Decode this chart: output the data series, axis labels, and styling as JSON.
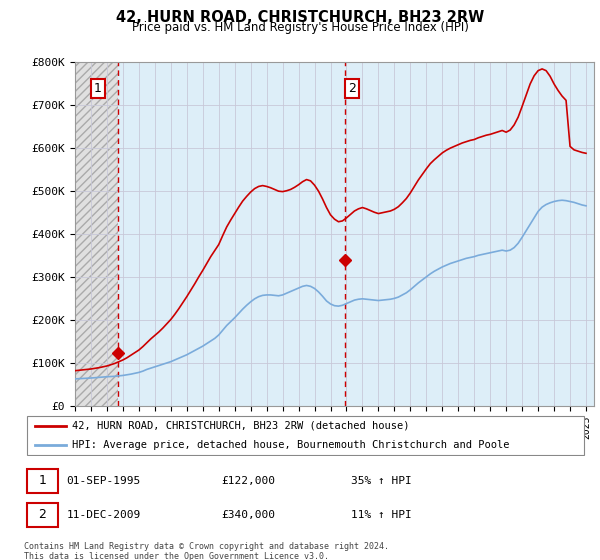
{
  "title": "42, HURN ROAD, CHRISTCHURCH, BH23 2RW",
  "subtitle": "Price paid vs. HM Land Registry's House Price Index (HPI)",
  "legend_line1": "42, HURN ROAD, CHRISTCHURCH, BH23 2RW (detached house)",
  "legend_line2": "HPI: Average price, detached house, Bournemouth Christchurch and Poole",
  "annotation1_label": "1",
  "annotation1_date": "01-SEP-1995",
  "annotation1_price": "£122,000",
  "annotation1_hpi": "35% ↑ HPI",
  "annotation2_label": "2",
  "annotation2_date": "11-DEC-2009",
  "annotation2_price": "£340,000",
  "annotation2_hpi": "11% ↑ HPI",
  "footer": "Contains HM Land Registry data © Crown copyright and database right 2024.\nThis data is licensed under the Open Government Licence v3.0.",
  "price_color": "#cc0000",
  "hpi_color": "#7aabdb",
  "dashed_line_color": "#cc0000",
  "hatch_area_color": "#e8e8e8",
  "blue_bg_color": "#ddeeff",
  "grid_color": "#bbbbcc",
  "ylim": [
    0,
    800000
  ],
  "xlim_left": 1993.0,
  "xlim_right": 2025.5,
  "sale1_x": 1995.67,
  "sale1_y": 122000,
  "sale2_x": 2009.92,
  "sale2_y": 340000,
  "hpi_x": [
    1993.0,
    1993.25,
    1993.5,
    1993.75,
    1994.0,
    1994.25,
    1994.5,
    1994.75,
    1995.0,
    1995.25,
    1995.5,
    1995.75,
    1996.0,
    1996.25,
    1996.5,
    1996.75,
    1997.0,
    1997.25,
    1997.5,
    1997.75,
    1998.0,
    1998.25,
    1998.5,
    1998.75,
    1999.0,
    1999.25,
    1999.5,
    1999.75,
    2000.0,
    2000.25,
    2000.5,
    2000.75,
    2001.0,
    2001.25,
    2001.5,
    2001.75,
    2002.0,
    2002.25,
    2002.5,
    2002.75,
    2003.0,
    2003.25,
    2003.5,
    2003.75,
    2004.0,
    2004.25,
    2004.5,
    2004.75,
    2005.0,
    2005.25,
    2005.5,
    2005.75,
    2006.0,
    2006.25,
    2006.5,
    2006.75,
    2007.0,
    2007.25,
    2007.5,
    2007.75,
    2008.0,
    2008.25,
    2008.5,
    2008.75,
    2009.0,
    2009.25,
    2009.5,
    2009.75,
    2010.0,
    2010.25,
    2010.5,
    2010.75,
    2011.0,
    2011.25,
    2011.5,
    2011.75,
    2012.0,
    2012.25,
    2012.5,
    2012.75,
    2013.0,
    2013.25,
    2013.5,
    2013.75,
    2014.0,
    2014.25,
    2014.5,
    2014.75,
    2015.0,
    2015.25,
    2015.5,
    2015.75,
    2016.0,
    2016.25,
    2016.5,
    2016.75,
    2017.0,
    2017.25,
    2017.5,
    2017.75,
    2018.0,
    2018.25,
    2018.5,
    2018.75,
    2019.0,
    2019.25,
    2019.5,
    2019.75,
    2020.0,
    2020.25,
    2020.5,
    2020.75,
    2021.0,
    2021.25,
    2021.5,
    2021.75,
    2022.0,
    2022.25,
    2022.5,
    2022.75,
    2023.0,
    2023.25,
    2023.5,
    2023.75,
    2024.0,
    2024.25,
    2024.5,
    2024.75,
    2025.0
  ],
  "hpi_y": [
    63000,
    63500,
    64000,
    64500,
    65000,
    65800,
    66600,
    67400,
    68000,
    68500,
    69000,
    70000,
    71000,
    72500,
    74000,
    76000,
    78000,
    81000,
    85000,
    88000,
    91000,
    94000,
    97000,
    100000,
    103000,
    107000,
    111000,
    115000,
    119000,
    124000,
    129000,
    134000,
    139000,
    145000,
    151000,
    157000,
    165000,
    176000,
    187000,
    196000,
    205000,
    215000,
    225000,
    234000,
    242000,
    249000,
    254000,
    257000,
    258000,
    258000,
    257000,
    256000,
    258000,
    262000,
    266000,
    270000,
    274000,
    278000,
    280000,
    278000,
    273000,
    265000,
    255000,
    244000,
    237000,
    233000,
    232000,
    234000,
    238000,
    242000,
    246000,
    248000,
    249000,
    248000,
    247000,
    246000,
    245000,
    246000,
    247000,
    248000,
    250000,
    253000,
    258000,
    263000,
    270000,
    278000,
    286000,
    293000,
    300000,
    307000,
    313000,
    318000,
    323000,
    327000,
    331000,
    334000,
    337000,
    340000,
    343000,
    345000,
    347000,
    350000,
    352000,
    354000,
    356000,
    358000,
    360000,
    362000,
    360000,
    362000,
    368000,
    378000,
    392000,
    407000,
    422000,
    437000,
    452000,
    462000,
    468000,
    472000,
    475000,
    477000,
    478000,
    477000,
    475000,
    473000,
    470000,
    467000,
    465000
  ],
  "price_x": [
    1993.0,
    1993.25,
    1993.5,
    1993.75,
    1994.0,
    1994.25,
    1994.5,
    1994.75,
    1995.0,
    1995.25,
    1995.5,
    1995.75,
    1996.0,
    1996.25,
    1996.5,
    1996.75,
    1997.0,
    1997.25,
    1997.5,
    1997.75,
    1998.0,
    1998.25,
    1998.5,
    1998.75,
    1999.0,
    1999.25,
    1999.5,
    1999.75,
    2000.0,
    2000.25,
    2000.5,
    2000.75,
    2001.0,
    2001.25,
    2001.5,
    2001.75,
    2002.0,
    2002.25,
    2002.5,
    2002.75,
    2003.0,
    2003.25,
    2003.5,
    2003.75,
    2004.0,
    2004.25,
    2004.5,
    2004.75,
    2005.0,
    2005.25,
    2005.5,
    2005.75,
    2006.0,
    2006.25,
    2006.5,
    2006.75,
    2007.0,
    2007.25,
    2007.5,
    2007.75,
    2008.0,
    2008.25,
    2008.5,
    2008.75,
    2009.0,
    2009.25,
    2009.5,
    2009.75,
    2010.0,
    2010.25,
    2010.5,
    2010.75,
    2011.0,
    2011.25,
    2011.5,
    2011.75,
    2012.0,
    2012.25,
    2012.5,
    2012.75,
    2013.0,
    2013.25,
    2013.5,
    2013.75,
    2014.0,
    2014.25,
    2014.5,
    2014.75,
    2015.0,
    2015.25,
    2015.5,
    2015.75,
    2016.0,
    2016.25,
    2016.5,
    2016.75,
    2017.0,
    2017.25,
    2017.5,
    2017.75,
    2018.0,
    2018.25,
    2018.5,
    2018.75,
    2019.0,
    2019.25,
    2019.5,
    2019.75,
    2020.0,
    2020.25,
    2020.5,
    2020.75,
    2021.0,
    2021.25,
    2021.5,
    2021.75,
    2022.0,
    2022.25,
    2022.5,
    2022.75,
    2023.0,
    2023.25,
    2023.5,
    2023.75,
    2024.0,
    2024.25,
    2024.5,
    2024.75,
    2025.0
  ],
  "price_y": [
    82000,
    83000,
    84000,
    85000,
    86000,
    87500,
    89000,
    91000,
    93000,
    96000,
    99000,
    103000,
    107000,
    112000,
    118000,
    124000,
    130000,
    138000,
    147000,
    156000,
    164000,
    172000,
    181000,
    191000,
    201000,
    213000,
    226000,
    240000,
    254000,
    269000,
    284000,
    300000,
    315000,
    331000,
    347000,
    361000,
    375000,
    396000,
    416000,
    432000,
    447000,
    462000,
    476000,
    487000,
    497000,
    505000,
    510000,
    512000,
    510000,
    507000,
    503000,
    499000,
    498000,
    500000,
    503000,
    508000,
    514000,
    521000,
    526000,
    523000,
    513000,
    499000,
    481000,
    461000,
    444000,
    434000,
    428000,
    430000,
    437000,
    445000,
    453000,
    458000,
    461000,
    458000,
    454000,
    450000,
    447000,
    449000,
    451000,
    453000,
    457000,
    463000,
    472000,
    482000,
    495000,
    510000,
    525000,
    538000,
    551000,
    563000,
    572000,
    580000,
    588000,
    594000,
    599000,
    603000,
    607000,
    611000,
    614000,
    617000,
    619000,
    623000,
    626000,
    629000,
    631000,
    634000,
    637000,
    640000,
    636000,
    641000,
    653000,
    671000,
    696000,
    722000,
    748000,
    767000,
    779000,
    783000,
    779000,
    766000,
    748000,
    733000,
    720000,
    710000,
    603000,
    595000,
    592000,
    589000,
    587000
  ]
}
